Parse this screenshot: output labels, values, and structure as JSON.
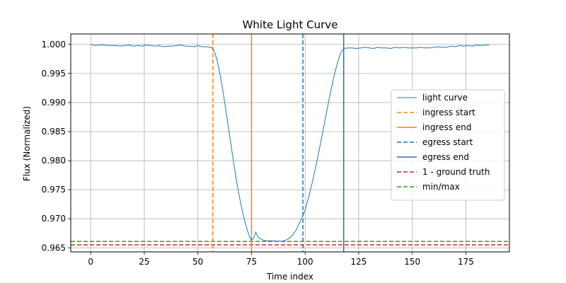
{
  "chart_data": {
    "type": "line",
    "title": "White Light Curve",
    "xlabel": "Time index",
    "ylabel": "Flux (Normalized)",
    "xlim": [
      -9.3,
      195.3
    ],
    "ylim": [
      0.9643,
      1.0018
    ],
    "grid": true,
    "legend_position": "center-right",
    "x_ticks": [
      0,
      25,
      50,
      75,
      100,
      125,
      150,
      175
    ],
    "y_ticks": [
      0.965,
      0.97,
      0.975,
      0.98,
      0.985,
      0.99,
      0.995,
      1.0
    ],
    "x_tick_labels": [
      "0",
      "25",
      "50",
      "75",
      "100",
      "125",
      "150",
      "175"
    ],
    "y_tick_labels": [
      "0.965",
      "0.970",
      "0.975",
      "0.980",
      "0.985",
      "0.990",
      "0.995",
      "1.000"
    ],
    "series": [
      {
        "name": "light curve",
        "color": "#1f77b4",
        "x": [
          0,
          2,
          4,
          6,
          8,
          10,
          12,
          14,
          16,
          18,
          20,
          22,
          24,
          26,
          28,
          30,
          32,
          34,
          36,
          38,
          40,
          42,
          44,
          46,
          48,
          50,
          52,
          54,
          56,
          57,
          58,
          59,
          60,
          61,
          62,
          63,
          64,
          65,
          66,
          67,
          68,
          69,
          70,
          71,
          72,
          73,
          74,
          75,
          76,
          77,
          78,
          79,
          80,
          81,
          82,
          83,
          84,
          85,
          86,
          87,
          88,
          89,
          90,
          91,
          92,
          93,
          94,
          95,
          96,
          97,
          98,
          99,
          100,
          101,
          102,
          103,
          104,
          105,
          106,
          107,
          108,
          109,
          110,
          111,
          112,
          113,
          114,
          115,
          116,
          117,
          118,
          120,
          122,
          124,
          126,
          128,
          130,
          132,
          134,
          136,
          138,
          140,
          142,
          144,
          146,
          148,
          150,
          152,
          154,
          156,
          158,
          160,
          162,
          164,
          166,
          168,
          170,
          172,
          174,
          176,
          178,
          180,
          182,
          184,
          186
        ],
        "y": [
          1.0,
          0.9998,
          0.9999,
          0.9999,
          0.9998,
          0.9998,
          0.9998,
          0.9997,
          0.9998,
          0.9999,
          0.9997,
          0.9998,
          0.9997,
          0.9999,
          0.9998,
          0.9997,
          0.9998,
          0.9996,
          0.9997,
          0.9997,
          0.9998,
          0.9999,
          0.9997,
          0.9997,
          0.9996,
          0.9998,
          0.9996,
          0.9996,
          0.9995,
          0.9993,
          0.9985,
          0.9972,
          0.9955,
          0.9935,
          0.9912,
          0.9888,
          0.9863,
          0.9838,
          0.9813,
          0.9789,
          0.9766,
          0.9745,
          0.9726,
          0.9709,
          0.9694,
          0.9681,
          0.967,
          0.9663,
          0.9667,
          0.9677,
          0.9669,
          0.9666,
          0.9664,
          0.9663,
          0.9662,
          0.9662,
          0.9662,
          0.9662,
          0.9662,
          0.9661,
          0.9662,
          0.9661,
          0.9662,
          0.9663,
          0.9665,
          0.9668,
          0.9671,
          0.9676,
          0.9682,
          0.969,
          0.9698,
          0.9706,
          0.9715,
          0.9728,
          0.9742,
          0.9757,
          0.9773,
          0.979,
          0.9808,
          0.9826,
          0.9845,
          0.9864,
          0.9883,
          0.9902,
          0.992,
          0.9937,
          0.9953,
          0.9967,
          0.9979,
          0.9988,
          0.9993,
          0.9994,
          0.9994,
          0.9993,
          0.9994,
          0.9995,
          0.9994,
          0.9993,
          0.9995,
          0.9994,
          0.9994,
          0.9993,
          0.9995,
          0.9994,
          0.9995,
          0.9994,
          0.9994,
          0.9994,
          0.9995,
          0.9994,
          0.9994,
          0.9995,
          0.9996,
          0.9995,
          0.9995,
          0.9997,
          0.9996,
          0.9998,
          0.9997,
          0.9998,
          0.9997,
          0.9999,
          0.9998,
          0.9999,
          0.9999
        ]
      }
    ],
    "vertical_lines": [
      {
        "name": "ingress start",
        "x": 57,
        "color": "#ff7f0e",
        "style": "dashed"
      },
      {
        "name": "ingress end",
        "x": 75,
        "color": "#ff7f0e",
        "style": "solid"
      },
      {
        "name": "egress start",
        "x": 99,
        "color": "#1f77b4",
        "style": "dashed"
      },
      {
        "name": "egress end",
        "x": 118,
        "color": "#1f77b4",
        "style": "solid"
      }
    ],
    "horizontal_lines": [
      {
        "name": "1 - ground truth",
        "y": 0.9655,
        "color": "#d62728",
        "style": "dashed"
      },
      {
        "name": "min/max",
        "y": 0.9661,
        "color": "#2ca02c",
        "style": "dashed"
      }
    ],
    "legend": [
      {
        "label": "light curve",
        "color": "#1f77b4",
        "style": "solid-thin"
      },
      {
        "label": "ingress start",
        "color": "#ff7f0e",
        "style": "dashed"
      },
      {
        "label": "ingress end",
        "color": "#ff7f0e",
        "style": "solid"
      },
      {
        "label": "egress start",
        "color": "#1f77b4",
        "style": "dashed"
      },
      {
        "label": "egress end",
        "color": "#1f77b4",
        "style": "solid"
      },
      {
        "label": "1 - ground truth",
        "color": "#d62728",
        "style": "dashed"
      },
      {
        "label": "min/max",
        "color": "#2ca02c",
        "style": "dashed"
      }
    ]
  }
}
